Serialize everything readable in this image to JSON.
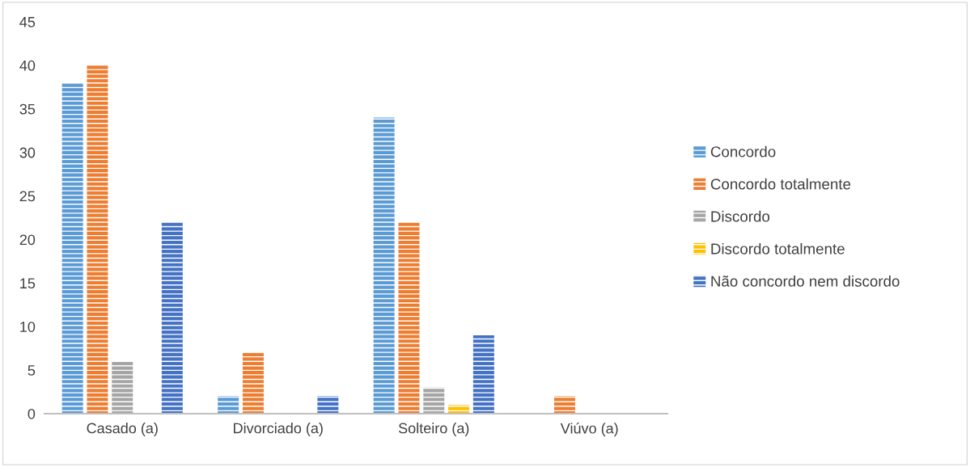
{
  "chart_data": {
    "type": "bar",
    "categories": [
      "Casado (a)",
      "Divorciado (a)",
      "Solteiro (a)",
      "Viúvo (a)"
    ],
    "series": [
      {
        "name": "Concordo",
        "color": "#5b9bd5",
        "values": [
          38,
          2,
          34,
          0
        ]
      },
      {
        "name": "Concordo totalmente",
        "color": "#ed7d31",
        "values": [
          40,
          7,
          22,
          2
        ]
      },
      {
        "name": "Discordo",
        "color": "#a5a5a5",
        "values": [
          6,
          0,
          3,
          0
        ]
      },
      {
        "name": "Discordo totalmente",
        "color": "#ffc000",
        "values": [
          0,
          0,
          1,
          0
        ]
      },
      {
        "name": "Não concordo nem discordo",
        "color": "#4472c4",
        "values": [
          22,
          2,
          9,
          0
        ]
      }
    ],
    "ylim": [
      0,
      45
    ],
    "yticks": [
      0,
      5,
      10,
      15,
      20,
      25,
      30,
      35,
      40,
      45
    ],
    "grid": false,
    "legend": "right"
  }
}
